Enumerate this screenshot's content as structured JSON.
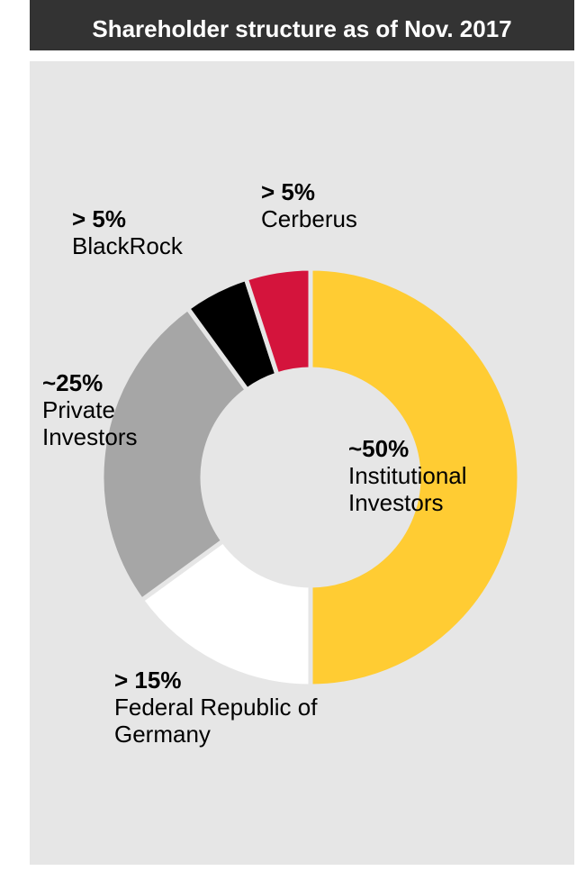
{
  "chart_data": {
    "type": "donut",
    "title": "Shareholder structure as of Nov. 2017",
    "categories": [
      "Institutional Investors",
      "Federal Republic of Germany",
      "Private Investors",
      "BlackRock",
      "Cerberus"
    ],
    "values": [
      50,
      15,
      25,
      5,
      5
    ],
    "value_labels": [
      "~50%",
      "> 15%",
      "~25%",
      "> 5%",
      "> 5%"
    ],
    "colors": [
      "#ffcc33",
      "#ffffff",
      "#a6a6a6",
      "#000000",
      "#d4143c"
    ]
  }
}
